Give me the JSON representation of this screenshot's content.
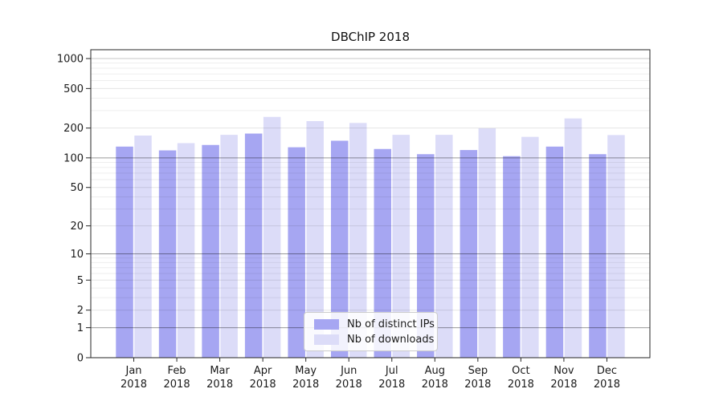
{
  "chart_data": {
    "type": "bar",
    "title": "DBChIP 2018",
    "categories": [
      "Jan",
      "Feb",
      "Mar",
      "Apr",
      "May",
      "Jun",
      "Jul",
      "Aug",
      "Sep",
      "Oct",
      "Nov",
      "Dec"
    ],
    "category_year": "2018",
    "series": [
      {
        "name": "Nb of distinct IPs",
        "color": "#a6a6f2",
        "values": [
          130,
          119,
          135,
          176,
          128,
          149,
          123,
          109,
          120,
          104,
          130,
          109
        ]
      },
      {
        "name": "Nb of downloads",
        "color": "#dcdcf8",
        "values": [
          168,
          141,
          171,
          259,
          235,
          225,
          171,
          171,
          199,
          163,
          250,
          170
        ]
      }
    ],
    "yscale": "symlog ln(1+x)",
    "yticks": [
      0,
      1,
      2,
      5,
      10,
      20,
      50,
      100,
      200,
      500,
      1000
    ],
    "ylim": [
      0,
      1240
    ],
    "grid": true,
    "legend_position": "inside-bottom-center",
    "colors": {
      "spine": "#262626",
      "tick_text": "#1a1a1a",
      "grid_minor": "rgba(0,0,0,0.065)",
      "grid_major": "rgba(0,0,0,0.10)",
      "grid_decade": "rgba(0,0,0,0.40)",
      "grid_top": "rgba(0,0,0,0.22)"
    }
  }
}
